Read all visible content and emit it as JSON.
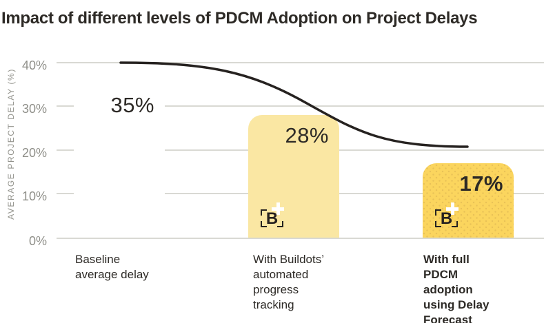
{
  "title": "Impact of different levels of PDCM Adoption on Project Delays",
  "logo": {
    "letter": "B",
    "name": "Buildots logo with plus sparkle"
  },
  "colors": {
    "background": "#ffffff",
    "title_text": "#2d2a26",
    "grid_line": "#d9d9d3",
    "tick_text": "#8f8f89",
    "axis_label_text": "#93938c",
    "bar_baseline": "#ffffff",
    "bar_buildots_tracking": "#fae7a3",
    "bar_full_pdcm": "#fbd55e",
    "bar_full_pdcm_dots": "#e9c257",
    "trend_line": "#262220",
    "logo_mark": "#262220",
    "logo_plus": "#ffffff"
  },
  "chart_data": {
    "type": "bar",
    "title": "Impact of different levels of PDCM Adoption on Project Delays",
    "xlabel": "",
    "ylabel": "AVERAGE PROJECT DELAY (%)",
    "ylim": [
      0,
      40
    ],
    "grid": true,
    "legend": "none",
    "ytick_labels": [
      "40%",
      "30%",
      "20%",
      "10%",
      "0%"
    ],
    "ytick_values": [
      40,
      30,
      20,
      10,
      0
    ],
    "categories": [
      "Baseline\naverage delay",
      "With Buildots’\nautomated\nprogress\ntracking",
      "With full\nPDCM\nadoption\nusing Delay\nForecast"
    ],
    "values": [
      35,
      28,
      17
    ],
    "value_labels": [
      "35%",
      "28%",
      "17%"
    ],
    "bar_has_logo": [
      false,
      true,
      true
    ],
    "emphasized_bar_index": 2,
    "trend_line": {
      "shape": "sigmoid decline overlay",
      "start_value_pct": 40,
      "end_value_pct": 21
    }
  }
}
